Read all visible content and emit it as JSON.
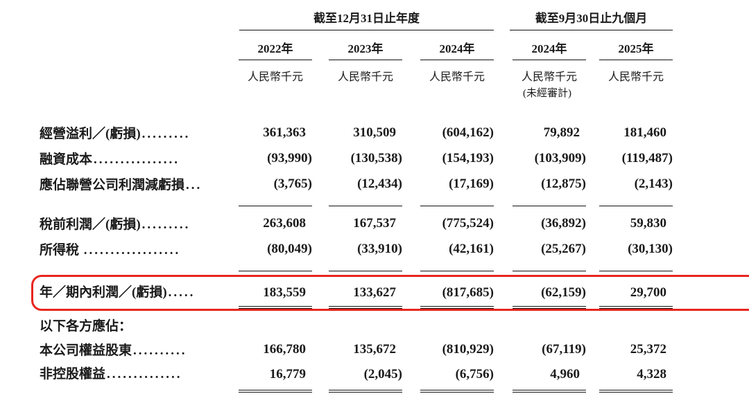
{
  "table": {
    "col_groups": [
      {
        "title": "截至12月31日止年度",
        "span": 3
      },
      {
        "title": "截至9月30日止九個月",
        "span": 2
      }
    ],
    "columns": [
      {
        "year": "2022年",
        "unit": "人民幣千元",
        "note": ""
      },
      {
        "year": "2023年",
        "unit": "人民幣千元",
        "note": ""
      },
      {
        "year": "2024年",
        "unit": "人民幣千元",
        "note": ""
      },
      {
        "year": "2024年",
        "unit": "人民幣千元",
        "note": "(未經審計)"
      },
      {
        "year": "2025年",
        "unit": "人民幣千元",
        "note": ""
      }
    ],
    "rows": [
      {
        "label": "經營溢利／(虧損)",
        "dots": ".........",
        "values": [
          "361,363",
          "310,509",
          "(604,162)",
          "79,892",
          "181,460"
        ]
      },
      {
        "label": "融資成本",
        "dots": "................",
        "values": [
          "(93,990)",
          "(130,538)",
          "(154,193)",
          "(103,909)",
          "(119,487)"
        ]
      },
      {
        "label": "應佔聯營公司利潤減虧損",
        "dots": "...",
        "values": [
          "(3,765)",
          "(12,434)",
          "(17,169)",
          "(12,875)",
          "(2,143)"
        ]
      },
      {
        "label": "稅前利潤／(虧損)",
        "dots": ".........",
        "values": [
          "263,608",
          "167,537",
          "(775,524)",
          "(36,892)",
          "59,830"
        ]
      },
      {
        "label": "所得稅 ",
        "dots": "..................",
        "values": [
          "(80,049)",
          "(33,910)",
          "(42,161)",
          "(25,267)",
          "(30,130)"
        ]
      },
      {
        "label": "年／期內利潤／(虧損)",
        "dots": ".....",
        "values": [
          "183,559",
          "133,627",
          "(817,685)",
          "(62,159)",
          "29,700"
        ]
      },
      {
        "label": "以下各方應佔：",
        "dots": "",
        "values": [
          "",
          "",
          "",
          "",
          ""
        ]
      },
      {
        "label": "本公司權益股東",
        "dots": "..........",
        "values": [
          "166,780",
          "135,672",
          "(810,929)",
          "(67,119)",
          "25,372"
        ]
      },
      {
        "label": "非控股權益",
        "dots": "..............",
        "values": [
          "16,779",
          "(2,045)",
          "(6,756)",
          "4,960",
          "4,328"
        ]
      }
    ]
  },
  "highlight": {
    "row": "年／期內利潤／(虧損)",
    "color": "#e8251f"
  }
}
